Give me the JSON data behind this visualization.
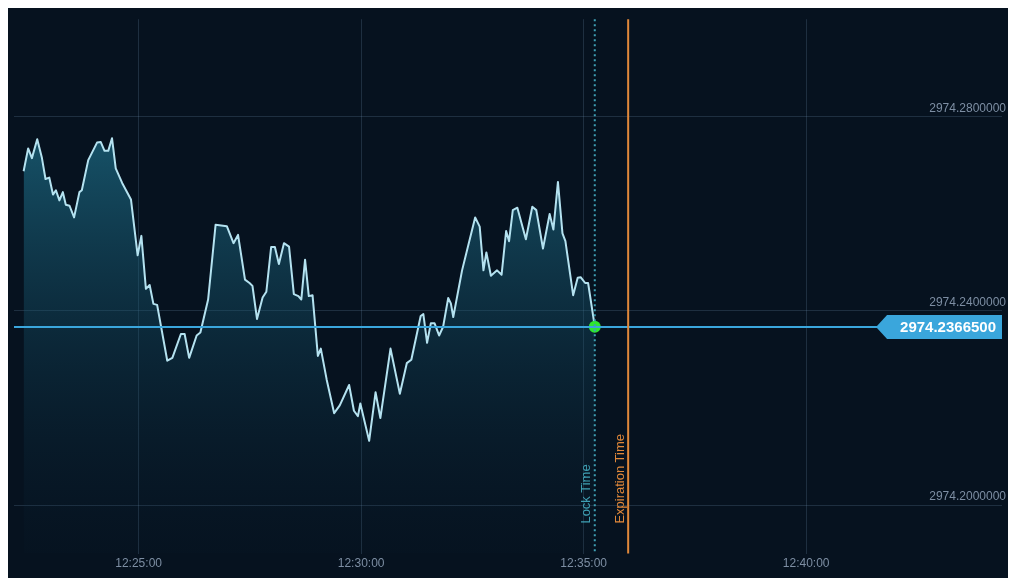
{
  "chart_data": {
    "type": "area",
    "xlim": [
      12.37,
      12.74
    ],
    "ylim": [
      2974.19,
      2974.3
    ],
    "xticks": [
      {
        "value": 12.41667,
        "label": "12:25:00"
      },
      {
        "value": 12.5,
        "label": "12:30:00"
      },
      {
        "value": 12.58333,
        "label": "12:35:00"
      },
      {
        "value": 12.66667,
        "label": "12:40:00"
      }
    ],
    "yticks": [
      {
        "value": 2974.2,
        "label": "2974.2000000"
      },
      {
        "value": 2974.24,
        "label": "2974.2400000"
      },
      {
        "value": 2974.28,
        "label": "2974.2800000"
      }
    ],
    "grid": true,
    "legend": false,
    "marker": "none",
    "series": [
      {
        "color": "#b4e2f0",
        "x": [
          12.3736,
          12.3753,
          12.3767,
          12.3787,
          12.3804,
          12.3818,
          12.3832,
          12.3846,
          12.3857,
          12.387,
          12.3883,
          12.3894,
          12.3908,
          12.3925,
          12.3945,
          12.3954,
          12.3978,
          12.4011,
          12.4025,
          12.4039,
          12.4053,
          12.4067,
          12.4081,
          12.4105,
          12.4138,
          12.4163,
          12.4177,
          12.4194,
          12.4208,
          12.4222,
          12.4236,
          12.4274,
          12.4293,
          12.4325,
          12.4339,
          12.4356,
          12.4384,
          12.4398,
          12.4427,
          12.4455,
          12.4497,
          12.4522,
          12.4539,
          12.4565,
          12.4582,
          12.4593,
          12.461,
          12.4631,
          12.4645,
          12.4663,
          12.4677,
          12.4692,
          12.4711,
          12.473,
          12.4748,
          12.4765,
          12.4776,
          12.479,
          12.4804,
          12.4818,
          12.4838,
          12.4849,
          12.4871,
          12.4899,
          12.492,
          12.4955,
          12.4973,
          12.4988,
          12.4997,
          12.503,
          12.5054,
          12.5072,
          12.511,
          12.5145,
          12.5171,
          12.5188,
          12.5223,
          12.5233,
          12.5247,
          12.5261,
          12.5275,
          12.5292,
          12.5307,
          12.5326,
          12.5336,
          12.5345,
          12.5378,
          12.5427,
          12.5444,
          12.5458,
          12.5469,
          12.5486,
          12.5509,
          12.5526,
          12.5543,
          12.5554,
          12.5568,
          12.5585,
          12.5617,
          12.5641,
          12.5656,
          12.5681,
          12.5706,
          12.572,
          12.5737,
          12.5754,
          12.5765,
          12.5794,
          12.5811,
          12.5822,
          12.5839,
          12.585,
          12.5875
        ],
        "values": [
          2974.2687,
          2974.2734,
          2974.2714,
          2974.2753,
          2974.2716,
          2974.2671,
          2974.2674,
          2974.2639,
          2974.2648,
          2974.2627,
          2974.2644,
          2974.2618,
          2974.2616,
          2974.2592,
          2974.2644,
          2974.2648,
          2974.271,
          2974.2746,
          2974.2747,
          2974.2729,
          2974.2729,
          2974.2755,
          2974.2693,
          2974.2663,
          2974.2629,
          2974.2514,
          2974.2554,
          2974.2445,
          2974.2453,
          2974.2414,
          2974.2412,
          2974.2297,
          2974.2303,
          2974.2352,
          2974.2352,
          2974.2303,
          2974.2349,
          2974.2355,
          2974.2423,
          2974.2577,
          2974.2574,
          2974.2539,
          2974.2556,
          2974.2464,
          2974.2457,
          2974.2451,
          2974.2383,
          2974.2427,
          2974.2439,
          2974.2531,
          2974.2531,
          2974.2496,
          2974.2539,
          2974.2532,
          2974.2434,
          2974.243,
          2974.2423,
          2974.2505,
          2974.243,
          2974.2432,
          2974.2307,
          2974.2322,
          2974.2258,
          2974.2189,
          2974.2205,
          2974.2247,
          2974.2194,
          2974.2183,
          2974.2209,
          2974.2132,
          2974.2232,
          2974.2179,
          2974.2322,
          2974.2229,
          2974.2292,
          2974.2299,
          2974.2389,
          2974.2393,
          2974.2334,
          2974.2374,
          2974.2374,
          2974.2349,
          2974.2367,
          2974.2426,
          2974.2415,
          2974.2387,
          2974.2483,
          2974.2592,
          2974.2573,
          2974.2483,
          2974.252,
          2974.2472,
          2974.2483,
          2974.2474,
          2974.2564,
          2974.2543,
          2974.2607,
          2974.2612,
          2974.2547,
          2974.2614,
          2974.2607,
          2974.2528,
          2974.2599,
          2974.2567,
          2974.2665,
          2974.2559,
          2974.2543,
          2974.2432,
          2974.2468,
          2974.2469,
          2974.2457,
          2974.2457,
          2974.2367
        ]
      },
      {
        "type": "scatter",
        "marker": "circle",
        "color": "#2ee62e",
        "x": [
          12.5875
        ],
        "values": [
          2974.2367
        ]
      }
    ],
    "ref_lines": [
      {
        "axis": "y",
        "value": 2974.23665,
        "label": "2974.2366500",
        "color": "#3aa6dc"
      },
      {
        "axis": "x",
        "value": 12.5875,
        "label": "Lock Time",
        "color": "#3f9fb3",
        "line_style": "dotted"
      },
      {
        "axis": "x",
        "value": 12.6,
        "label": "Expiration Time",
        "color": "#e0883a"
      }
    ]
  }
}
